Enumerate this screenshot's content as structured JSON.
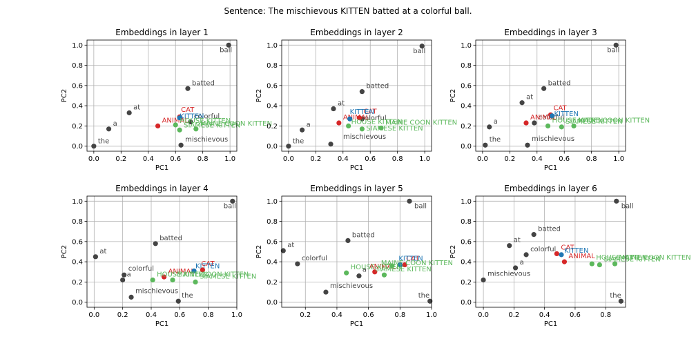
{
  "figure": {
    "title": "Sentence: The mischievous KITTEN batted at a colorful ball."
  },
  "colors": {
    "word": "#444444",
    "kitten": "#1f77b4",
    "animal": "#d62728",
    "cat": "#d62728",
    "variant": "#5cb85c"
  },
  "chart_data": [
    {
      "type": "scatter",
      "title": "Embeddings in layer 1",
      "xlabel": "PC1",
      "ylabel": "PC2",
      "xlim": [
        -0.05,
        1.05
      ],
      "ylim": [
        -0.05,
        1.05
      ],
      "xticks": [
        0.0,
        0.2,
        0.4,
        0.6,
        0.8,
        1.0
      ],
      "yticks": [
        0.0,
        0.2,
        0.4,
        0.6,
        0.8,
        1.0
      ],
      "grid": true,
      "points": [
        {
          "label": "the",
          "x": 0.0,
          "y": 0.0,
          "kind": "word",
          "dx": 6,
          "dy": -4
        },
        {
          "label": "a",
          "x": 0.11,
          "y": 0.17,
          "kind": "word",
          "dx": 6,
          "dy": -5
        },
        {
          "label": "at",
          "x": 0.26,
          "y": 0.33,
          "kind": "word",
          "dx": 6,
          "dy": -5
        },
        {
          "label": "batted",
          "x": 0.69,
          "y": 0.57,
          "kind": "word",
          "dx": 6,
          "dy": -5
        },
        {
          "label": "ball",
          "x": 0.99,
          "y": 1.0,
          "kind": "word",
          "dx": -13,
          "dy": 10
        },
        {
          "label": "mischievous",
          "x": 0.64,
          "y": 0.01,
          "kind": "word",
          "dx": 6,
          "dy": -5
        },
        {
          "label": "colorful",
          "x": 0.71,
          "y": 0.24,
          "kind": "word",
          "dx": 5,
          "dy": -5
        },
        {
          "label": "ANIMAL",
          "x": 0.47,
          "y": 0.2,
          "kind": "animal",
          "dx": 6,
          "dy": -5
        },
        {
          "label": "CAT",
          "x": 0.63,
          "y": 0.29,
          "kind": "cat",
          "dx": 2,
          "dy": -7
        },
        {
          "label": "KITTEN",
          "x": 0.63,
          "y": 0.28,
          "kind": "kitten",
          "dx": 0,
          "dy": 1
        },
        {
          "label": "HOUSE KITTEN",
          "x": 0.6,
          "y": 0.21,
          "kind": "variant",
          "dx": 6,
          "dy": -3
        },
        {
          "label": "SIAMESE KITTEN",
          "x": 0.63,
          "y": 0.16,
          "kind": "variant",
          "dx": 6,
          "dy": -4
        },
        {
          "label": "MAINE COON KITTEN",
          "x": 0.75,
          "y": 0.17,
          "kind": "variant",
          "dx": 6,
          "dy": -5
        }
      ]
    },
    {
      "type": "scatter",
      "title": "Embeddings in layer 2",
      "xlabel": "PC1",
      "ylabel": "PC2",
      "xlim": [
        -0.05,
        1.05
      ],
      "ylim": [
        -0.05,
        1.05
      ],
      "xticks": [
        0.0,
        0.2,
        0.4,
        0.6,
        0.8,
        1.0
      ],
      "yticks": [
        0.0,
        0.2,
        0.4,
        0.6,
        0.8,
        1.0
      ],
      "grid": true,
      "points": [
        {
          "label": "the",
          "x": 0.0,
          "y": 0.0,
          "kind": "word",
          "dx": 6,
          "dy": -4
        },
        {
          "label": "a",
          "x": 0.1,
          "y": 0.16,
          "kind": "word",
          "dx": 6,
          "dy": -5
        },
        {
          "label": "at",
          "x": 0.33,
          "y": 0.37,
          "kind": "word",
          "dx": 6,
          "dy": -5
        },
        {
          "label": "batted",
          "x": 0.54,
          "y": 0.54,
          "kind": "word",
          "dx": 6,
          "dy": -5
        },
        {
          "label": "ball",
          "x": 0.98,
          "y": 0.99,
          "kind": "word",
          "dx": -13,
          "dy": 10
        },
        {
          "label": "mischievous",
          "x": 0.31,
          "y": 0.02,
          "kind": "word",
          "dx": 18,
          "dy": -8
        },
        {
          "label": "colorful",
          "x": 0.54,
          "y": 0.27,
          "kind": "word",
          "dx": -2,
          "dy": 2
        },
        {
          "label": "ANIMAL",
          "x": 0.37,
          "y": 0.23,
          "kind": "animal",
          "dx": 6,
          "dy": -5
        },
        {
          "label": "CAT",
          "x": 0.52,
          "y": 0.28,
          "kind": "cat",
          "dx": 6,
          "dy": -6
        },
        {
          "label": "KITTEN",
          "x": 0.45,
          "y": 0.27,
          "kind": "kitten",
          "dx": 0,
          "dy": -7
        },
        {
          "label": "HOUSE KITTEN",
          "x": 0.44,
          "y": 0.2,
          "kind": "variant",
          "dx": 4,
          "dy": -3
        },
        {
          "label": "SIAMESE KITTEN",
          "x": 0.54,
          "y": 0.17,
          "kind": "variant",
          "dx": 6,
          "dy": 2
        },
        {
          "label": "MAINE COON KITTEN",
          "x": 0.68,
          "y": 0.18,
          "kind": "variant",
          "dx": 6,
          "dy": -5
        }
      ]
    },
    {
      "type": "scatter",
      "title": "Embeddings in layer 3",
      "xlabel": "PC1",
      "ylabel": "PC2",
      "xlim": [
        -0.05,
        1.05
      ],
      "ylim": [
        -0.05,
        1.05
      ],
      "xticks": [
        0.0,
        0.2,
        0.4,
        0.6,
        0.8,
        1.0
      ],
      "yticks": [
        0.0,
        0.2,
        0.4,
        0.6,
        0.8,
        1.0
      ],
      "grid": true,
      "points": [
        {
          "label": "the",
          "x": 0.02,
          "y": 0.01,
          "kind": "word",
          "dx": 6,
          "dy": -5
        },
        {
          "label": "a",
          "x": 0.05,
          "y": 0.19,
          "kind": "word",
          "dx": 6,
          "dy": -5
        },
        {
          "label": "at",
          "x": 0.29,
          "y": 0.43,
          "kind": "word",
          "dx": 6,
          "dy": -5
        },
        {
          "label": "batted",
          "x": 0.45,
          "y": 0.57,
          "kind": "word",
          "dx": 6,
          "dy": -5
        },
        {
          "label": "ball",
          "x": 0.98,
          "y": 1.0,
          "kind": "word",
          "dx": -13,
          "dy": 10
        },
        {
          "label": "mischievous",
          "x": 0.33,
          "y": 0.01,
          "kind": "word",
          "dx": 6,
          "dy": -6
        },
        {
          "label": "colorful",
          "x": 0.38,
          "y": 0.23,
          "kind": "word",
          "dx": 6,
          "dy": -5
        },
        {
          "label": "ANIMAL",
          "x": 0.32,
          "y": 0.23,
          "kind": "animal",
          "dx": 6,
          "dy": -5
        },
        {
          "label": "CAT",
          "x": 0.5,
          "y": 0.31,
          "kind": "cat",
          "dx": 4,
          "dy": -7
        },
        {
          "label": "KITTEN",
          "x": 0.51,
          "y": 0.3,
          "kind": "kitten",
          "dx": 3,
          "dy": 0
        },
        {
          "label": "HOUSE KITTEN",
          "x": 0.48,
          "y": 0.2,
          "kind": "variant",
          "dx": 6,
          "dy": -5
        },
        {
          "label": "SIAMESE KITTEN",
          "x": 0.58,
          "y": 0.19,
          "kind": "variant",
          "dx": 6,
          "dy": -5
        },
        {
          "label": "MAINE COON KITTEN",
          "x": 0.67,
          "y": 0.2,
          "kind": "variant",
          "dx": 6,
          "dy": -5
        }
      ]
    },
    {
      "type": "scatter",
      "title": "Embeddings in layer 4",
      "xlabel": "PC1",
      "ylabel": "PC2",
      "xlim": [
        -0.05,
        1.0
      ],
      "ylim": [
        -0.05,
        1.05
      ],
      "xticks": [
        0.0,
        0.2,
        0.4,
        0.6,
        0.8,
        1.0
      ],
      "yticks": [
        0.0,
        0.2,
        0.4,
        0.6,
        0.8,
        1.0
      ],
      "grid": true,
      "points": [
        {
          "label": "at",
          "x": 0.01,
          "y": 0.45,
          "kind": "word",
          "dx": 6,
          "dy": -5
        },
        {
          "label": "batted",
          "x": 0.43,
          "y": 0.58,
          "kind": "word",
          "dx": 6,
          "dy": -5
        },
        {
          "label": "ball",
          "x": 0.97,
          "y": 1.0,
          "kind": "word",
          "dx": -13,
          "dy": 10
        },
        {
          "label": "colorful",
          "x": 0.21,
          "y": 0.27,
          "kind": "word",
          "dx": 6,
          "dy": -6
        },
        {
          "label": "a",
          "x": 0.2,
          "y": 0.22,
          "kind": "word",
          "dx": 6,
          "dy": -5
        },
        {
          "label": "mischievous",
          "x": 0.26,
          "y": 0.05,
          "kind": "word",
          "dx": 6,
          "dy": -6
        },
        {
          "label": "the",
          "x": 0.59,
          "y": 0.01,
          "kind": "word",
          "dx": 5,
          "dy": -5
        },
        {
          "label": "ANIMAL",
          "x": 0.49,
          "y": 0.25,
          "kind": "animal",
          "dx": 6,
          "dy": -5
        },
        {
          "label": "CAT",
          "x": 0.76,
          "y": 0.32,
          "kind": "cat",
          "dx": -2,
          "dy": -6
        },
        {
          "label": "KITTEN",
          "x": 0.7,
          "y": 0.31,
          "kind": "kitten",
          "dx": 2,
          "dy": -4
        },
        {
          "label": "HOUSE KITTEN",
          "x": 0.41,
          "y": 0.22,
          "kind": "variant",
          "dx": 6,
          "dy": -5
        },
        {
          "label": "SIAMESE KITTEN",
          "x": 0.71,
          "y": 0.2,
          "kind": "variant",
          "dx": 6,
          "dy": -5
        },
        {
          "label": "MAINE COON KITTEN",
          "x": 0.55,
          "y": 0.22,
          "kind": "variant",
          "dx": 6,
          "dy": -5
        }
      ]
    },
    {
      "type": "scatter",
      "title": "Embeddings in layer 5",
      "xlabel": "PC1",
      "ylabel": "PC2",
      "xlim": [
        0.05,
        1.0
      ],
      "ylim": [
        -0.05,
        1.05
      ],
      "xticks": [
        0.2,
        0.4,
        0.6,
        0.8,
        1.0
      ],
      "yticks": [
        0.0,
        0.2,
        0.4,
        0.6,
        0.8,
        1.0
      ],
      "grid": true,
      "points": [
        {
          "label": "at",
          "x": 0.06,
          "y": 0.51,
          "kind": "word",
          "dx": 6,
          "dy": -5
        },
        {
          "label": "batted",
          "x": 0.47,
          "y": 0.61,
          "kind": "word",
          "dx": 6,
          "dy": -5
        },
        {
          "label": "ball",
          "x": 0.86,
          "y": 1.0,
          "kind": "word",
          "dx": 7,
          "dy": 10
        },
        {
          "label": "colorful",
          "x": 0.15,
          "y": 0.38,
          "kind": "word",
          "dx": 6,
          "dy": -5
        },
        {
          "label": "mischievous",
          "x": 0.33,
          "y": 0.1,
          "kind": "word",
          "dx": 6,
          "dy": -6
        },
        {
          "label": "the",
          "x": 0.99,
          "y": 0.01,
          "kind": "word",
          "dx": -17,
          "dy": -5
        },
        {
          "label": "a",
          "x": 0.54,
          "y": 0.26,
          "kind": "word",
          "dx": 5,
          "dy": -6
        },
        {
          "label": "ANIMAL",
          "x": 0.64,
          "y": 0.3,
          "kind": "animal",
          "dx": -8,
          "dy": -5
        },
        {
          "label": "CAT",
          "x": 0.83,
          "y": 0.37,
          "kind": "cat",
          "dx": 2,
          "dy": -6
        },
        {
          "label": "KITTEN",
          "x": 0.8,
          "y": 0.37,
          "kind": "kitten",
          "dx": -2,
          "dy": -6
        },
        {
          "label": "HOUSE KITTEN",
          "x": 0.46,
          "y": 0.29,
          "kind": "variant",
          "dx": 6,
          "dy": -5
        },
        {
          "label": "SIAMESE KITTEN",
          "x": 0.7,
          "y": 0.27,
          "kind": "variant",
          "dx": -14,
          "dy": -5
        },
        {
          "label": "MAINE COON KITTEN",
          "x": 0.75,
          "y": 0.36,
          "kind": "variant",
          "dx": -16,
          "dy": -1
        }
      ]
    },
    {
      "type": "scatter",
      "title": "Embeddings in layer 6",
      "xlabel": "PC1",
      "ylabel": "PC2",
      "xlim": [
        -0.05,
        0.93
      ],
      "ylim": [
        -0.05,
        1.05
      ],
      "xticks": [
        0.0,
        0.2,
        0.4,
        0.6,
        0.8
      ],
      "yticks": [
        0.0,
        0.2,
        0.4,
        0.6,
        0.8,
        1.0
      ],
      "grid": true,
      "points": [
        {
          "label": "mischievous",
          "x": 0.0,
          "y": 0.22,
          "kind": "word",
          "dx": 6,
          "dy": -6
        },
        {
          "label": "at",
          "x": 0.17,
          "y": 0.56,
          "kind": "word",
          "dx": 6,
          "dy": -5
        },
        {
          "label": "batted",
          "x": 0.33,
          "y": 0.67,
          "kind": "word",
          "dx": 6,
          "dy": -5
        },
        {
          "label": "ball",
          "x": 0.87,
          "y": 1.0,
          "kind": "word",
          "dx": 7,
          "dy": 10
        },
        {
          "label": "colorful",
          "x": 0.28,
          "y": 0.47,
          "kind": "word",
          "dx": 6,
          "dy": -5
        },
        {
          "label": "a",
          "x": 0.21,
          "y": 0.34,
          "kind": "word",
          "dx": 6,
          "dy": -5
        },
        {
          "label": "the",
          "x": 0.9,
          "y": 0.01,
          "kind": "word",
          "dx": -16,
          "dy": -5
        },
        {
          "label": "ANIMAL",
          "x": 0.53,
          "y": 0.4,
          "kind": "animal",
          "dx": 6,
          "dy": -5
        },
        {
          "label": "CAT",
          "x": 0.48,
          "y": 0.48,
          "kind": "cat",
          "dx": 6,
          "dy": -6
        },
        {
          "label": "KITTEN",
          "x": 0.51,
          "y": 0.47,
          "kind": "kitten",
          "dx": 4,
          "dy": -3
        },
        {
          "label": "HOUSE KITTEN",
          "x": 0.71,
          "y": 0.38,
          "kind": "variant",
          "dx": 6,
          "dy": -6
        },
        {
          "label": "SIAMESE KITTEN",
          "x": 0.76,
          "y": 0.37,
          "kind": "variant",
          "dx": 6,
          "dy": -5
        },
        {
          "label": "MAINE COON KITTEN",
          "x": 0.86,
          "y": 0.38,
          "kind": "variant",
          "dx": 6,
          "dy": -6
        }
      ]
    }
  ]
}
